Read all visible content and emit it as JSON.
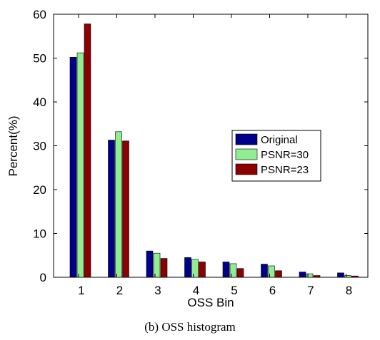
{
  "chart_data": {
    "type": "bar",
    "title": "",
    "xlabel": "OSS Bin",
    "ylabel": "Percent(%)",
    "ylim": [
      0,
      60
    ],
    "yticks": [
      "0",
      "10",
      "20",
      "30",
      "40",
      "50",
      "60"
    ],
    "categories": [
      "1",
      "2",
      "3",
      "4",
      "5",
      "6",
      "7",
      "8"
    ],
    "series": [
      {
        "name": "Original",
        "color": "#00008b",
        "values": [
          50.2,
          31.3,
          6.0,
          4.5,
          3.5,
          3.0,
          1.2,
          1.0
        ]
      },
      {
        "name": "PSNR=30",
        "color": "#90ee90",
        "values": [
          51.2,
          33.2,
          5.5,
          4.1,
          3.1,
          2.6,
          0.8,
          0.4
        ]
      },
      {
        "name": "PSNR=23",
        "color": "#8b0000",
        "values": [
          57.8,
          31.1,
          4.3,
          3.5,
          2.0,
          1.5,
          0.4,
          0.3
        ]
      }
    ],
    "grid": false,
    "legend_position": "right"
  },
  "caption": "(b) OSS histogram"
}
